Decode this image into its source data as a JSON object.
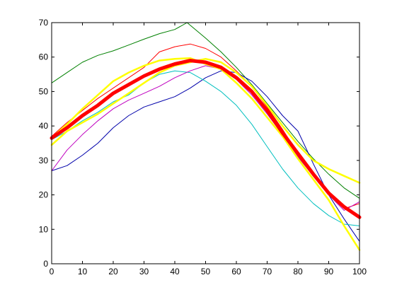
{
  "chart_data": {
    "type": "line",
    "title": "",
    "xlabel": "",
    "ylabel": "",
    "xlim": [
      0,
      100
    ],
    "ylim": [
      0,
      70
    ],
    "xticks": [
      0,
      10,
      20,
      30,
      40,
      50,
      60,
      70,
      80,
      90,
      100
    ],
    "yticks": [
      0,
      10,
      20,
      30,
      40,
      50,
      60,
      70
    ],
    "xtick_labels": [
      "0",
      "10",
      "20",
      "30",
      "40",
      "50",
      "60",
      "70",
      "80",
      "90",
      "100"
    ],
    "ytick_labels": [
      "0",
      "10",
      "20",
      "30",
      "40",
      "50",
      "60",
      "70"
    ],
    "grid": false,
    "legend": false,
    "series": [
      {
        "color": "#008000",
        "width": 1,
        "x": [
          0,
          5,
          10,
          15,
          20,
          25,
          30,
          35,
          40,
          44,
          50,
          55,
          60,
          65,
          70,
          75,
          80,
          85,
          90,
          95,
          100
        ],
        "y": [
          52.5,
          55.5,
          58.5,
          60.5,
          61.8,
          63.5,
          65.2,
          66.8,
          68,
          70,
          65.5,
          61.5,
          57,
          52,
          46.5,
          41,
          35.5,
          30.5,
          26,
          22,
          19
        ]
      },
      {
        "color": "#ff0000",
        "width": 1,
        "x": [
          0,
          5,
          10,
          15,
          20,
          25,
          30,
          35,
          40,
          45,
          50,
          55,
          60,
          65,
          70,
          75,
          80,
          85,
          90,
          95,
          100
        ],
        "y": [
          37,
          41,
          44.5,
          48,
          51,
          54,
          57,
          61.5,
          63,
          63.8,
          62.5,
          60,
          56,
          51.5,
          45.5,
          39,
          32,
          26,
          20.5,
          16,
          17.5
        ]
      },
      {
        "color": "#0000aa",
        "width": 1,
        "x": [
          0,
          5,
          10,
          15,
          20,
          25,
          30,
          35,
          40,
          45,
          50,
          55,
          60,
          65,
          70,
          75,
          80,
          85,
          90,
          95,
          100
        ],
        "y": [
          27,
          28.5,
          31.5,
          35,
          39.5,
          43,
          45.5,
          47,
          48.5,
          51,
          54,
          56,
          55.5,
          53,
          48.5,
          43,
          38.5,
          29,
          20,
          13,
          6.5
        ]
      },
      {
        "color": "#00bfbf",
        "width": 1,
        "x": [
          0,
          5,
          10,
          15,
          20,
          25,
          30,
          35,
          40,
          45,
          50,
          55,
          60,
          65,
          70,
          75,
          80,
          85,
          90,
          95,
          100
        ],
        "y": [
          36,
          38.5,
          41.5,
          44,
          47,
          49,
          52.5,
          55,
          56,
          55.5,
          53,
          50,
          46,
          40.5,
          34,
          27.5,
          22,
          17.5,
          14,
          11.5,
          11
        ]
      },
      {
        "color": "#bf00bf",
        "width": 1,
        "x": [
          0,
          5,
          10,
          15,
          20,
          25,
          30,
          35,
          40,
          45,
          50,
          55,
          60,
          65,
          70,
          75,
          80,
          85,
          90,
          95,
          100
        ],
        "y": [
          27,
          33,
          37.5,
          41.5,
          45,
          47.5,
          49.5,
          51.5,
          54,
          56,
          57.5,
          56.5,
          53.5,
          49,
          43.5,
          37.5,
          31,
          25.5,
          20,
          15.5,
          18
        ]
      },
      {
        "color": "#ffff00",
        "width": 2.5,
        "x": [
          0,
          5,
          10,
          15,
          20,
          25,
          30,
          35,
          40,
          45,
          50,
          55,
          60,
          65,
          70,
          75,
          80,
          85,
          90,
          95,
          100
        ],
        "y": [
          36.5,
          40.5,
          45,
          49,
          53,
          55.5,
          57.5,
          59,
          59.5,
          59.7,
          58,
          56.5,
          52.5,
          48,
          42.5,
          37,
          30.5,
          24.5,
          18.5,
          11,
          4
        ]
      },
      {
        "color": "#ffff00",
        "width": 2.5,
        "x": [
          0,
          5,
          10,
          15,
          20,
          25,
          30,
          35,
          40,
          45,
          50,
          55,
          60,
          65,
          70,
          75,
          80,
          85,
          90,
          95,
          100
        ],
        "y": [
          34.5,
          38.5,
          41,
          43.5,
          46.5,
          49.5,
          52.5,
          55.5,
          57.5,
          58.5,
          59.5,
          58.5,
          55.5,
          51.5,
          46,
          40,
          34.5,
          30,
          27.5,
          25.5,
          23.5
        ]
      },
      {
        "color": "#ff0000",
        "width": 5,
        "x": [
          0,
          5,
          10,
          15,
          20,
          25,
          30,
          35,
          40,
          45,
          50,
          55,
          60,
          65,
          70,
          75,
          80,
          85,
          90,
          95,
          100
        ],
        "y": [
          36.5,
          39.5,
          43,
          46,
          49.5,
          52,
          54.5,
          56.5,
          58,
          59,
          58.5,
          57,
          54,
          50,
          44.5,
          38,
          32,
          26,
          20.5,
          16.5,
          13.5
        ]
      }
    ]
  }
}
